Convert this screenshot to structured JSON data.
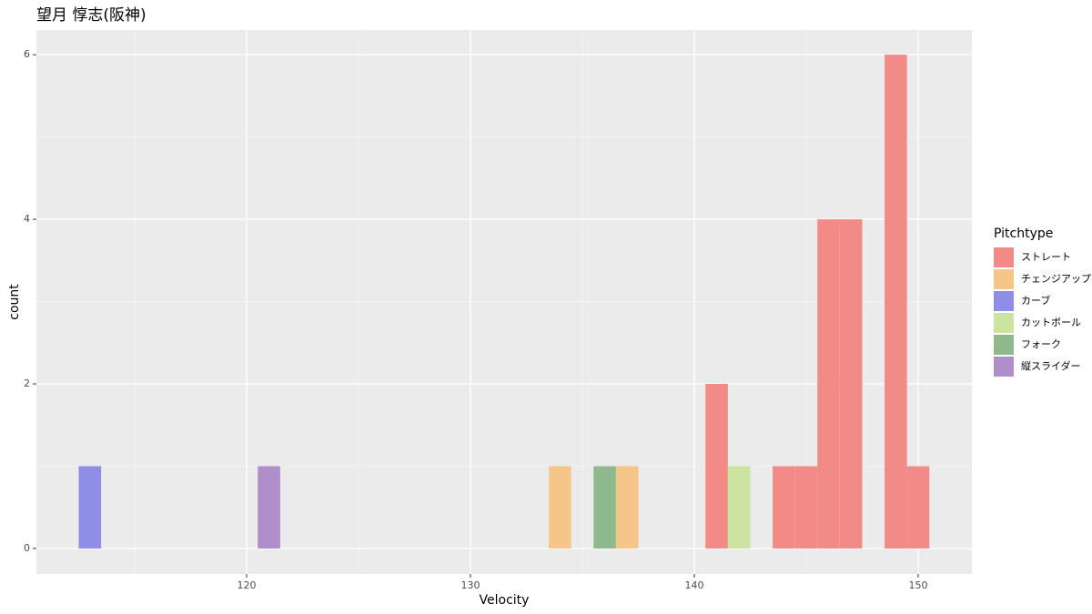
{
  "chart_data": {
    "type": "histogram",
    "title": "望月 惇志(阪神)",
    "x_label": "Velocity",
    "y_label": "count",
    "legend_title": "Pitchtype",
    "legend_position": "right",
    "bins": [
      112.5,
      113.5,
      114.5,
      115.5,
      116.5,
      117.5,
      118.5,
      119.5,
      120.5,
      121.5,
      122.5,
      123.5,
      124.5,
      125.5,
      126.5,
      127.5,
      128.5,
      129.5,
      130.5,
      131.5,
      132.5,
      133.5,
      134.5,
      135.5,
      136.5,
      137.5,
      138.5,
      139.5,
      140.5,
      141.5,
      142.5,
      143.5,
      144.5,
      145.5,
      146.5,
      147.5,
      148.5,
      149.5,
      150.5
    ],
    "series": [
      {
        "name": "ストレート",
        "color": "#f28b87",
        "values": [
          0,
          0,
          0,
          0,
          0,
          0,
          0,
          0,
          0,
          0,
          0,
          0,
          0,
          0,
          0,
          0,
          0,
          0,
          0,
          0,
          0,
          0,
          0,
          0,
          0,
          0,
          0,
          0,
          2,
          0,
          0,
          1,
          1,
          4,
          4,
          0,
          6,
          1
        ]
      },
      {
        "name": "チェンジアップ",
        "color": "#f5c58a",
        "values": [
          0,
          0,
          0,
          0,
          0,
          0,
          0,
          0,
          0,
          0,
          0,
          0,
          0,
          0,
          0,
          0,
          0,
          0,
          0,
          0,
          0,
          1,
          0,
          0,
          1,
          0,
          0,
          0,
          0,
          0,
          0,
          0,
          0,
          0,
          0,
          0,
          0,
          0
        ]
      },
      {
        "name": "カーブ",
        "color": "#8f8ee6",
        "values": [
          1,
          0,
          0,
          0,
          0,
          0,
          0,
          0,
          0,
          0,
          0,
          0,
          0,
          0,
          0,
          0,
          0,
          0,
          0,
          0,
          0,
          0,
          0,
          0,
          0,
          0,
          0,
          0,
          0,
          0,
          0,
          0,
          0,
          0,
          0,
          0,
          0,
          0
        ]
      },
      {
        "name": "カットボール",
        "color": "#cde3a0",
        "values": [
          0,
          0,
          0,
          0,
          0,
          0,
          0,
          0,
          0,
          0,
          0,
          0,
          0,
          0,
          0,
          0,
          0,
          0,
          0,
          0,
          0,
          0,
          0,
          0,
          0,
          0,
          0,
          0,
          0,
          1,
          0,
          0,
          0,
          0,
          0,
          0,
          0,
          0
        ]
      },
      {
        "name": "フォーク",
        "color": "#8fb98c",
        "values": [
          0,
          0,
          0,
          0,
          0,
          0,
          0,
          0,
          0,
          0,
          0,
          0,
          0,
          0,
          0,
          0,
          0,
          0,
          0,
          0,
          0,
          0,
          0,
          1,
          0,
          0,
          0,
          0,
          0,
          0,
          0,
          0,
          0,
          0,
          0,
          0,
          0,
          0
        ]
      },
      {
        "name": "縦スライダー",
        "color": "#b08ec8",
        "values": [
          0,
          0,
          0,
          0,
          0,
          0,
          0,
          0,
          1,
          0,
          0,
          0,
          0,
          0,
          0,
          0,
          0,
          0,
          0,
          0,
          0,
          0,
          0,
          0,
          0,
          0,
          0,
          0,
          0,
          0,
          0,
          0,
          0,
          0,
          0,
          0,
          0,
          0
        ]
      }
    ],
    "xlim": [
      110.61,
      152.4
    ],
    "xticks": [
      120,
      130,
      140,
      150
    ],
    "ylim": [
      -0.31,
      6.3
    ],
    "yticks": [
      0,
      2,
      4,
      6
    ],
    "grid": true
  }
}
